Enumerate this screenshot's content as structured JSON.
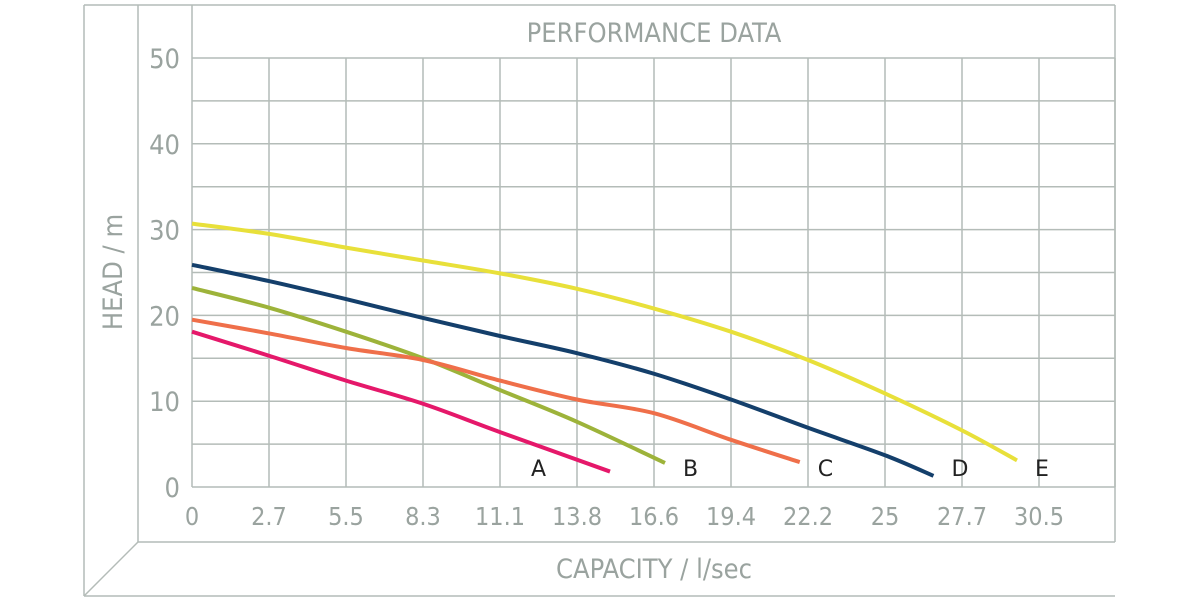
{
  "chart_data": {
    "type": "line",
    "title": "PERFORMANCE DATA",
    "xlabel": "CAPACITY / l/sec",
    "ylabel": "HEAD / m",
    "x_ticks": [
      "0",
      "2.7",
      "5.5",
      "8.3",
      "11.1",
      "13.8",
      "16.6",
      "19.4",
      "22.2",
      "25",
      "27.7",
      "30.5"
    ],
    "y_ticks": [
      "0",
      "10",
      "20",
      "30",
      "40",
      "50"
    ],
    "xlim": [
      0,
      33.3
    ],
    "ylim": [
      0,
      50
    ],
    "grid": true,
    "colors": {
      "grid": "#b4bcb8",
      "text": "#9aa39f",
      "frame": "#b4bcb8"
    },
    "series": [
      {
        "name": "A",
        "color": "#e5186a",
        "x": [
          0,
          2.7,
          5.5,
          8.3,
          11.1,
          15.0
        ],
        "y": [
          18.1,
          15.3,
          12.4,
          9.7,
          6.4,
          1.8
        ]
      },
      {
        "name": "B",
        "color": "#9db33a",
        "x": [
          0,
          2.7,
          5.5,
          8.3,
          11.1,
          13.8,
          17.0
        ],
        "y": [
          23.2,
          20.9,
          18.1,
          15.0,
          11.3,
          7.6,
          2.8
        ]
      },
      {
        "name": "C",
        "color": "#ef6f4a",
        "x": [
          0,
          2.7,
          5.5,
          8.3,
          11.1,
          13.8,
          16.6,
          19.4,
          21.9
        ],
        "y": [
          19.5,
          17.9,
          16.2,
          14.8,
          12.4,
          10.2,
          8.6,
          5.5,
          2.9
        ]
      },
      {
        "name": "D",
        "color": "#143f6b",
        "x": [
          0,
          2.7,
          5.5,
          8.3,
          11.1,
          13.8,
          16.6,
          19.4,
          22.2,
          25,
          26.7
        ],
        "y": [
          25.9,
          24.0,
          21.9,
          19.7,
          17.6,
          15.6,
          13.2,
          10.2,
          6.9,
          3.7,
          1.3
        ]
      },
      {
        "name": "E",
        "color": "#e8e03a",
        "x": [
          0,
          2.7,
          5.5,
          8.3,
          11.1,
          13.8,
          16.6,
          19.4,
          22.2,
          25,
          27.7,
          29.7
        ],
        "y": [
          30.7,
          29.5,
          27.9,
          26.4,
          24.9,
          23.1,
          20.8,
          18.1,
          14.8,
          10.9,
          6.6,
          3.1
        ]
      }
    ]
  }
}
